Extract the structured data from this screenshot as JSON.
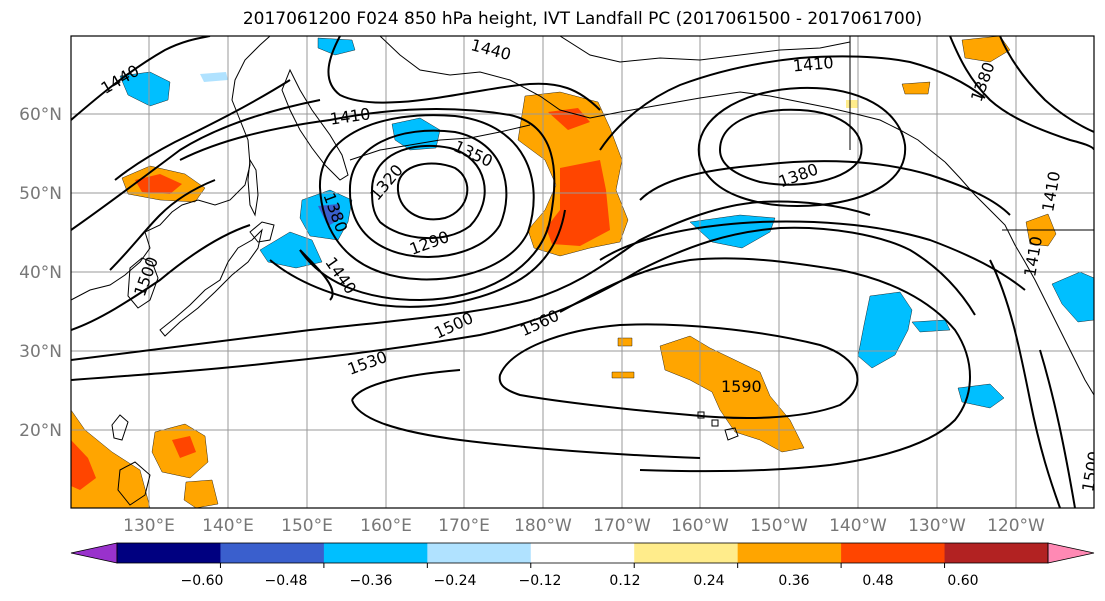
{
  "title": "2017061200 F024 850 hPa height, IVT Landfall PC (2017061500 - 2017061700)",
  "latitude_labels": [
    "60°N",
    "50°N",
    "40°N",
    "30°N",
    "20°N"
  ],
  "longitude_labels": [
    "130°E",
    "140°E",
    "150°E",
    "160°E",
    "170°E",
    "180°W",
    "170°W",
    "160°W",
    "150°W",
    "140°W",
    "130°W",
    "120°W"
  ],
  "contour_labels": [
    "1440",
    "1440",
    "1410",
    "1410",
    "1380",
    "1380",
    "1350",
    "1320",
    "1380",
    "1290",
    "1440",
    "1500",
    "1500",
    "1560",
    "1530",
    "1590",
    "1410",
    "1410",
    "1500"
  ],
  "colorbar": {
    "tick_labels": [
      "−0.60",
      "−0.48",
      "−0.36",
      "−0.24",
      "−0.12",
      "0.12",
      "0.24",
      "0.36",
      "0.48",
      "0.60"
    ],
    "colors": [
      "#9932CC",
      "#000080",
      "#3A5FCD",
      "#00BFFF",
      "#B0E2FF",
      "#FFFFFF",
      "#FFEC8B",
      "#FFA500",
      "#FF4500",
      "#B22222",
      "#FF89B4"
    ]
  },
  "colors": {
    "contour": "#000000",
    "gridline": "#999999",
    "coastline": "#000000"
  }
}
